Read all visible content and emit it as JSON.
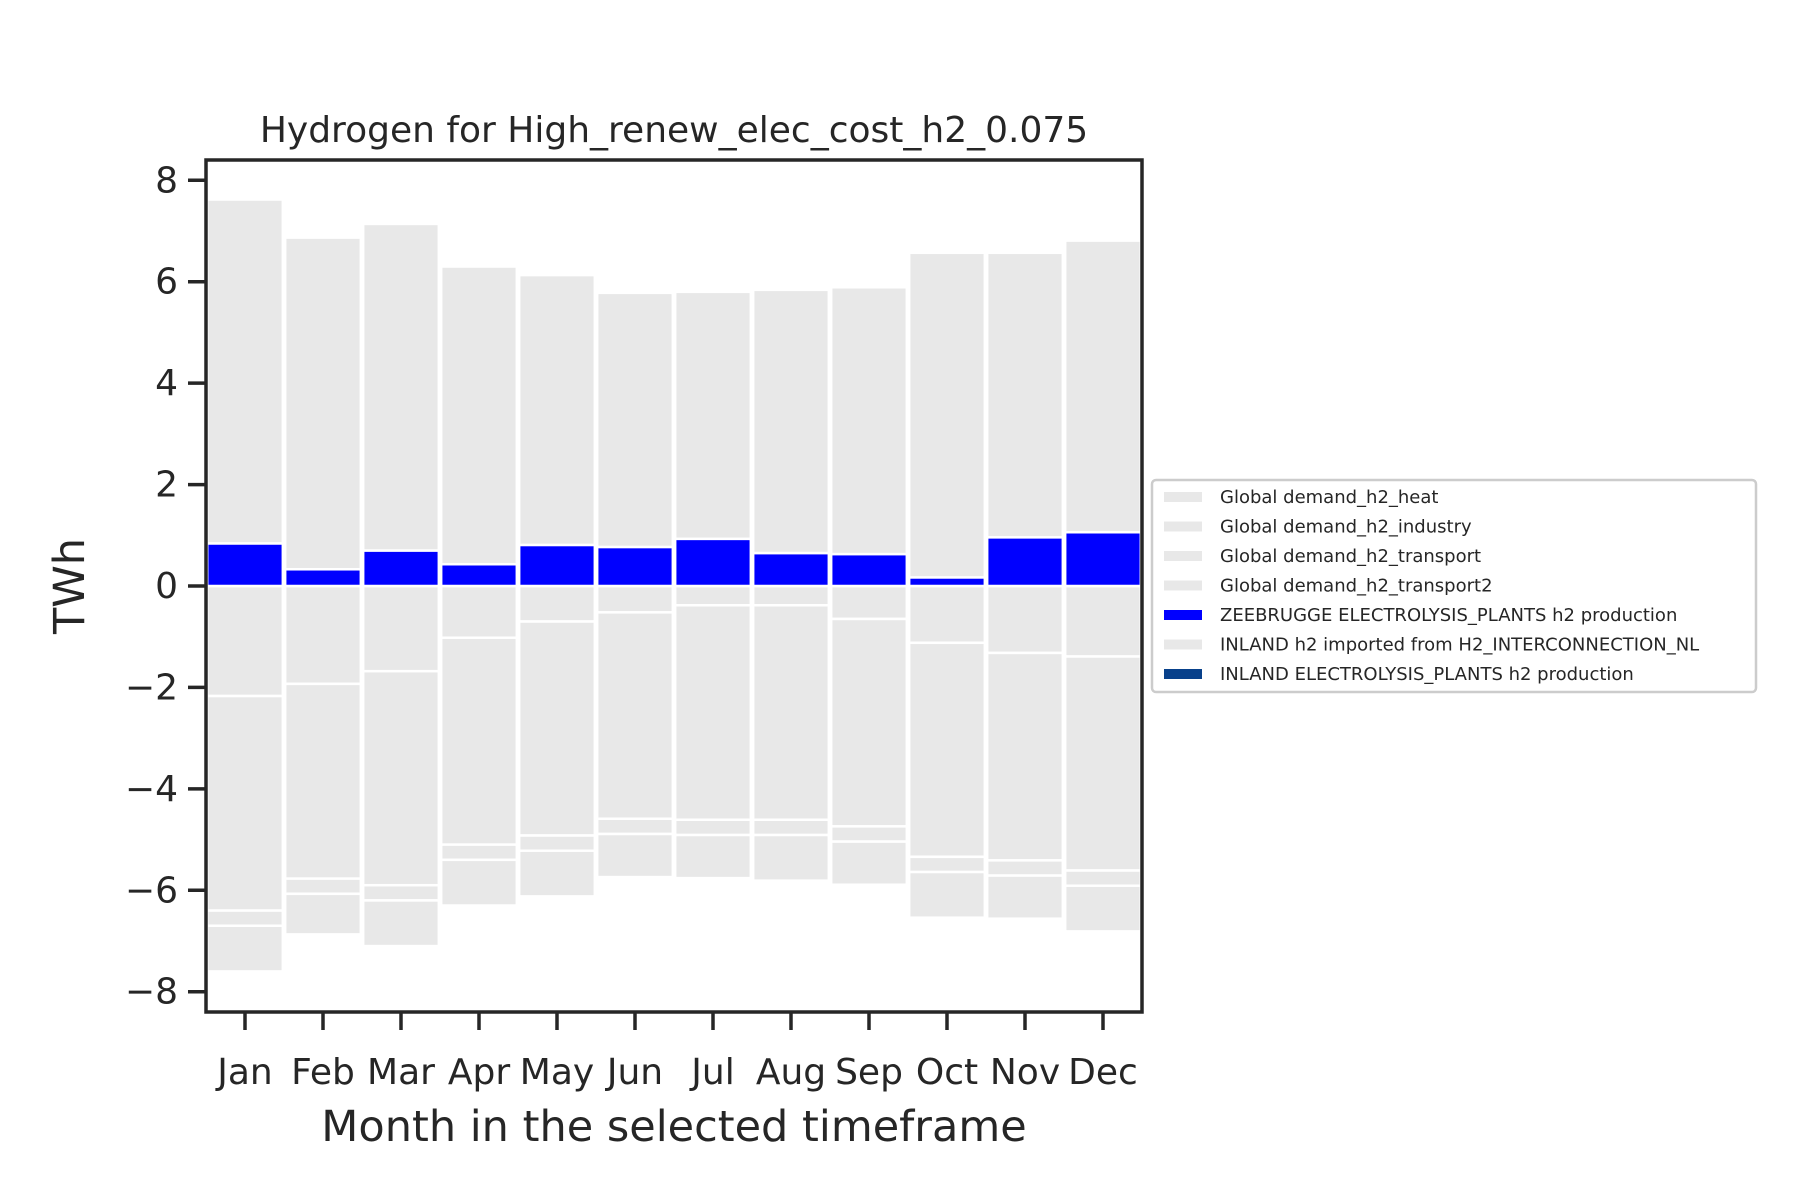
{
  "chart_data": {
    "type": "bar",
    "stacked": true,
    "title": "Hydrogen for High_renew_elec_cost_h2_0.075",
    "xlabel": "Month in the selected timeframe",
    "ylabel": "TWh",
    "ylim": [
      -8.4,
      8.4
    ],
    "yticks": [
      8,
      6,
      4,
      2,
      0,
      -2,
      -4,
      -6,
      -8
    ],
    "ytick_labels": [
      "8",
      "6",
      "4",
      "2",
      "0",
      "−2",
      "−4",
      "−6",
      "−8"
    ],
    "categories": [
      "Jan",
      "Feb",
      "Mar",
      "Apr",
      "May",
      "Jun",
      "Jul",
      "Aug",
      "Sep",
      "Oct",
      "Nov",
      "Dec"
    ],
    "grid": false,
    "legend_position": "right",
    "series": [
      {
        "name": "Global demand_h2_heat",
        "color": "#e8e8e8",
        "values": [
          -2.17,
          -1.93,
          -1.68,
          -1.02,
          -0.7,
          -0.52,
          -0.38,
          -0.38,
          -0.65,
          -1.12,
          -1.32,
          -1.39
        ]
      },
      {
        "name": "Global demand_h2_industry",
        "color": "#e8e8e8",
        "values": [
          -4.23,
          -3.84,
          -4.22,
          -4.08,
          -4.22,
          -4.07,
          -4.23,
          -4.23,
          -4.09,
          -4.22,
          -4.09,
          -4.22
        ]
      },
      {
        "name": "Global demand_h2_transport",
        "color": "#e8e8e8",
        "values": [
          -0.3,
          -0.3,
          -0.3,
          -0.3,
          -0.3,
          -0.3,
          -0.3,
          -0.3,
          -0.3,
          -0.3,
          -0.3,
          -0.3
        ]
      },
      {
        "name": "Global demand_h2_transport2",
        "color": "#e8e8e8",
        "values": [
          -0.9,
          -0.8,
          -0.9,
          -0.9,
          -0.9,
          -0.85,
          -0.85,
          -0.9,
          -0.85,
          -0.9,
          -0.85,
          -0.9
        ]
      },
      {
        "name": "ZEEBRUGGE ELECTROLYSIS_PLANTS h2 production",
        "color": "#0000ff",
        "values": [
          0.84,
          0.33,
          0.7,
          0.43,
          0.81,
          0.77,
          0.93,
          0.65,
          0.63,
          0.17,
          0.96,
          1.06
        ]
      },
      {
        "name": "INLAND h2 imported from H2_INTERCONNECTION_NL",
        "color": "#e8e8e8",
        "values": [
          6.78,
          6.54,
          6.44,
          5.87,
          5.32,
          5.01,
          4.87,
          5.19,
          5.26,
          6.4,
          5.61,
          5.75
        ]
      },
      {
        "name": "INLAND ELECTROLYSIS_PLANTS h2 production",
        "color": "#08418b",
        "values": [
          0,
          0,
          0,
          0,
          0,
          0,
          0,
          0,
          0,
          0,
          0,
          0
        ]
      }
    ]
  }
}
